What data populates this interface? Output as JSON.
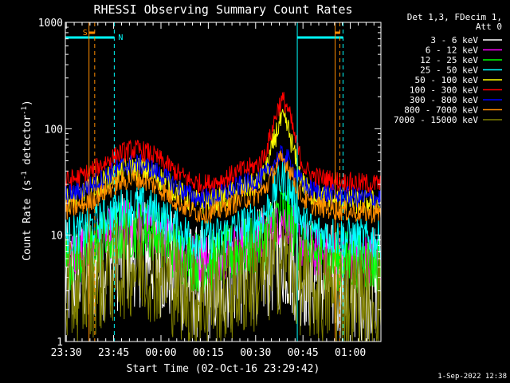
{
  "chart_data": {
    "type": "line",
    "title": "RHESSI Observing Summary Count Rates",
    "xlabel": "Start Time (02-Oct-16 23:29:42)",
    "ylabel_main": "Count Rate (s",
    "ylabel_sup1": "-1",
    "ylabel_mid": " detector",
    "ylabel_sup2": "-1",
    "ylabel_end": ")",
    "y_scale": "log",
    "ylim": [
      1,
      1000
    ],
    "xlim_minutes": [
      0,
      100
    ],
    "x_ticks": [
      {
        "label": "23:30",
        "minutes": 0.3
      },
      {
        "label": "23:45",
        "minutes": 15.3
      },
      {
        "label": "00:00",
        "minutes": 30.3
      },
      {
        "label": "00:15",
        "minutes": 45.3
      },
      {
        "label": "00:30",
        "minutes": 60.3
      },
      {
        "label": "00:45",
        "minutes": 75.3
      },
      {
        "label": "01:00",
        "minutes": 90.3
      }
    ],
    "y_ticks": [
      {
        "label": "1",
        "value": 1
      },
      {
        "label": "10",
        "value": 10
      },
      {
        "label": "100",
        "value": 100
      },
      {
        "label": "1000",
        "value": 1000
      }
    ],
    "legend_header": [
      "Det 1,3, FDecim 1,",
      "Att 0"
    ],
    "legend_position": "right",
    "series": [
      {
        "name": "3 - 6 keV",
        "color": "#ffffff",
        "level": 3.5,
        "peak": 4.8,
        "noise": 0.55
      },
      {
        "name": "6 - 12 keV",
        "color": "#ff00ff",
        "level": 6.0,
        "peak": 10.5,
        "noise": 0.25
      },
      {
        "name": "12 - 25 keV",
        "color": "#00ff00",
        "level": 5.5,
        "peak": 12.0,
        "noise": 0.3
      },
      {
        "name": "25 - 50 keV",
        "color": "#00ffff",
        "level": 9.0,
        "peak": 24.0,
        "noise": 0.2
      },
      {
        "name": "50 - 100 keV",
        "color": "#ffff00",
        "level": 20.0,
        "peak": 85.0,
        "noise": 0.12
      },
      {
        "name": "100 - 300 keV",
        "color": "#ff0000",
        "level": 30.0,
        "peak": 130.0,
        "noise": 0.1
      },
      {
        "name": "300 - 800 keV",
        "color": "#0000ff",
        "level": 22.0,
        "peak": 40.0,
        "noise": 0.1
      },
      {
        "name": "800 - 7000 keV",
        "color": "#ff8c00",
        "level": 16.0,
        "peak": 36.0,
        "noise": 0.1
      },
      {
        "name": "7000 - 15000 keV",
        "color": "#808000",
        "level": 2.5,
        "peak": 4.0,
        "noise": 0.5
      }
    ],
    "annotations": {
      "saa_label": "S",
      "night_label": "N",
      "saa_intervals": [
        [
          7.5,
          9.3
        ],
        [
          85.5,
          87.0
        ]
      ],
      "night_intervals": [
        [
          -1.0,
          15.5
        ],
        [
          73.5,
          88.0
        ]
      ]
    },
    "footer": "1-Sep-2022 12:38"
  }
}
